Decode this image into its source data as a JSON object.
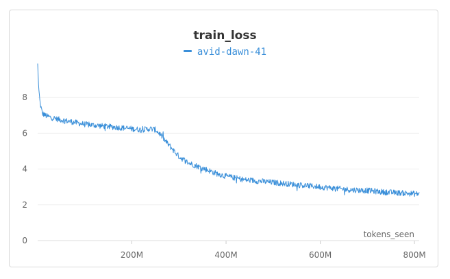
{
  "chart_data": {
    "type": "line",
    "title": "train_loss",
    "xlabel": "tokens_seen",
    "ylabel": "",
    "xlim": [
      0,
      810
    ],
    "ylim": [
      0,
      10
    ],
    "x_unit": "M",
    "x_ticks": [
      200,
      400,
      600,
      800
    ],
    "x_tick_labels": [
      "200M",
      "400M",
      "600M",
      "800M"
    ],
    "y_ticks": [
      0,
      2,
      4,
      6,
      8
    ],
    "y_tick_labels": [
      "0",
      "2",
      "4",
      "6",
      "8"
    ],
    "grid": true,
    "legend_position": "top-center",
    "series": [
      {
        "name": "avid-dawn-41",
        "color": "#3a8fd9",
        "x": [
          0,
          2,
          5,
          10,
          20,
          40,
          60,
          80,
          100,
          120,
          140,
          160,
          180,
          200,
          220,
          240,
          250,
          260,
          270,
          280,
          290,
          300,
          320,
          340,
          360,
          380,
          400,
          420,
          440,
          460,
          480,
          500,
          520,
          540,
          560,
          580,
          600,
          620,
          640,
          660,
          680,
          700,
          720,
          740,
          760,
          780,
          800,
          810
        ],
        "y": [
          9.9,
          8.6,
          7.7,
          7.1,
          6.95,
          6.8,
          6.7,
          6.6,
          6.5,
          6.45,
          6.4,
          6.35,
          6.3,
          6.25,
          6.2,
          6.25,
          6.2,
          5.95,
          5.6,
          5.3,
          5.0,
          4.7,
          4.35,
          4.15,
          3.95,
          3.75,
          3.6,
          3.5,
          3.4,
          3.35,
          3.3,
          3.25,
          3.2,
          3.15,
          3.1,
          3.05,
          3.0,
          2.95,
          2.9,
          2.85,
          2.82,
          2.8,
          2.75,
          2.7,
          2.68,
          2.65,
          2.62,
          2.6
        ]
      }
    ]
  }
}
